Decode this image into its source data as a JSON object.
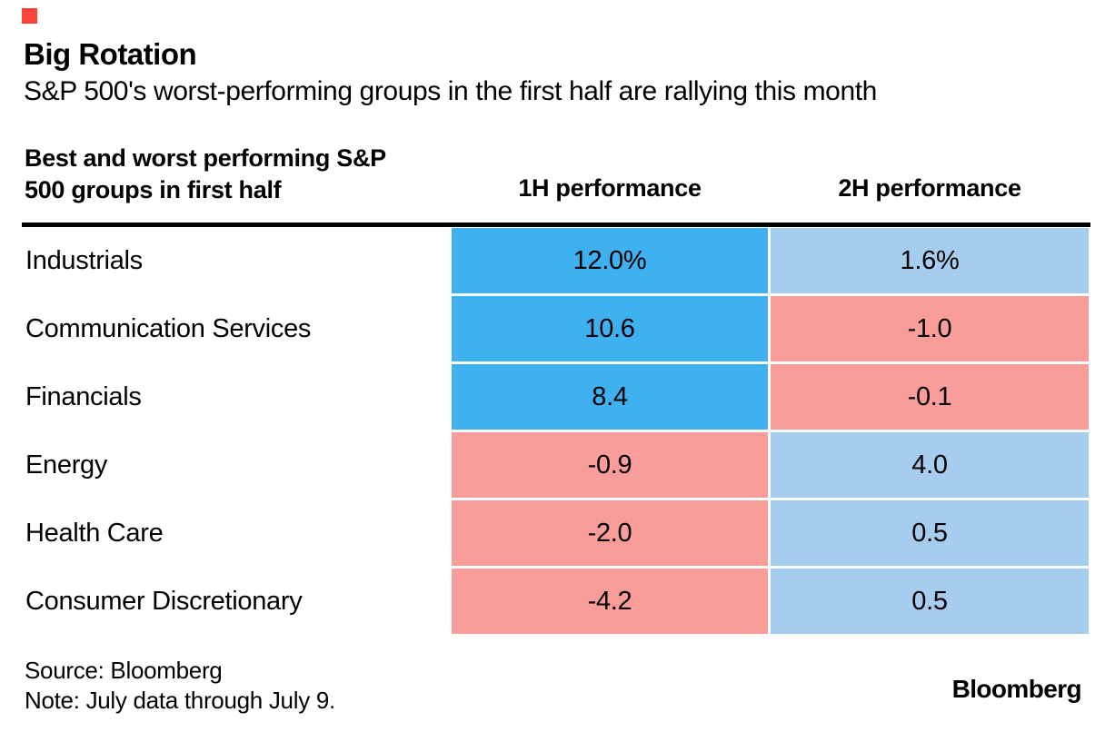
{
  "brand": {
    "mark_color": "#f9423a",
    "logo_text": "Bloomberg"
  },
  "header": {
    "title": "Big Rotation",
    "subtitle": "S&P 500's worst-performing groups in the first half are rallying this month"
  },
  "table": {
    "row_header_line1": "Best and worst performing S&P",
    "row_header_line2": "500 groups in first half",
    "col1_header": "1H performance",
    "col2_header": "2H performance",
    "rows": [
      {
        "label": "Industrials",
        "h1": "12.0%",
        "h1_bg": "#3fb1f0",
        "h2": "1.6%",
        "h2_bg": "#a6cdee"
      },
      {
        "label": "Communication Services",
        "h1": "10.6",
        "h1_bg": "#3fb1f0",
        "h2": "-1.0",
        "h2_bg": "#f99d9b"
      },
      {
        "label": "Financials",
        "h1": "8.4",
        "h1_bg": "#3fb1f0",
        "h2": "-0.1",
        "h2_bg": "#f99d9b"
      },
      {
        "label": "Energy",
        "h1": "-0.9",
        "h1_bg": "#f99d9b",
        "h2": "4.0",
        "h2_bg": "#a6cdee"
      },
      {
        "label": "Health Care",
        "h1": "-2.0",
        "h1_bg": "#f99d9b",
        "h2": "0.5",
        "h2_bg": "#a6cdee"
      },
      {
        "label": "Consumer Discretionary",
        "h1": "-4.2",
        "h1_bg": "#f99d9b",
        "h2": "0.5",
        "h2_bg": "#a6cdee"
      }
    ]
  },
  "palette": {
    "strong_positive_blue": "#3fb1f0",
    "mild_positive_light_blue": "#a6cdee",
    "negative_pink": "#f99d9b",
    "rule_black": "#000000"
  },
  "footer": {
    "source": "Source: Bloomberg",
    "note": "Note: July data through July 9."
  },
  "chart_data": {
    "type": "table",
    "title": "Big Rotation",
    "subtitle": "S&P 500's worst-performing groups in the first half are rallying this month",
    "row_header": "Best and worst performing S&P 500 groups in first half",
    "categories": [
      "Industrials",
      "Communication Services",
      "Financials",
      "Energy",
      "Health Care",
      "Consumer Discretionary"
    ],
    "series": [
      {
        "name": "1H performance",
        "values": [
          12.0,
          10.6,
          8.4,
          -0.9,
          -2.0,
          -4.2
        ]
      },
      {
        "name": "2H performance",
        "values": [
          1.6,
          -1.0,
          -0.1,
          4.0,
          0.5,
          0.5
        ]
      }
    ],
    "units": "%",
    "legend_position": "none",
    "color_coding": "bright blue = strong positive (1H leaders), light blue = positive, pink = negative",
    "source": "Bloomberg",
    "note": "July data through July 9."
  }
}
